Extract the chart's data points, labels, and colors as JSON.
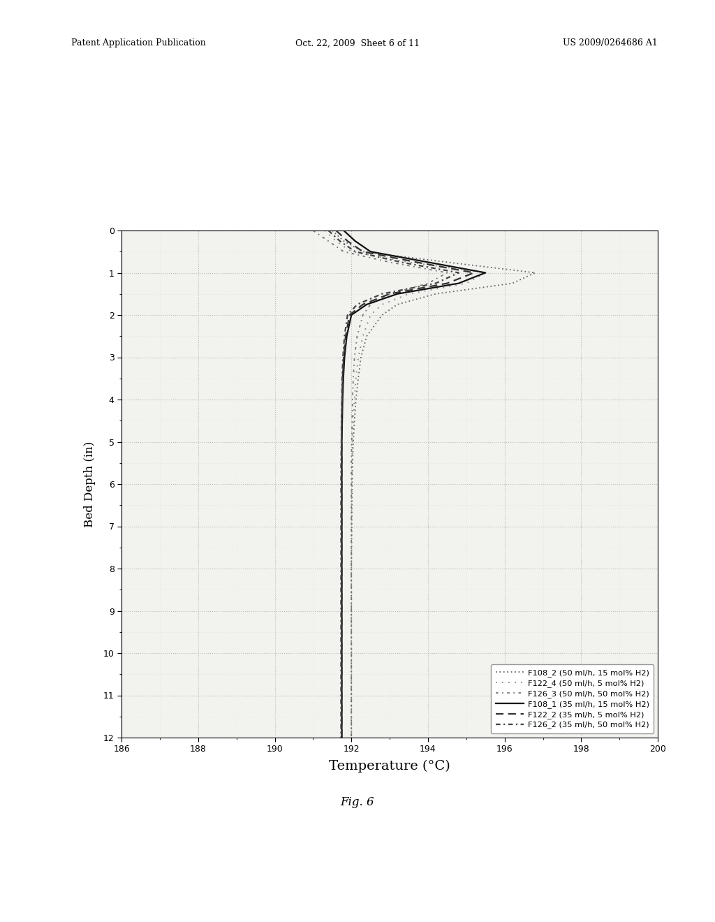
{
  "xlabel": "Temperature (°C)",
  "ylabel": "Bed Depth (in)",
  "xlim": [
    186,
    200
  ],
  "ylim": [
    12,
    0
  ],
  "xticks": [
    186,
    188,
    190,
    192,
    194,
    196,
    198,
    200
  ],
  "yticks": [
    0,
    1,
    2,
    3,
    4,
    5,
    6,
    7,
    8,
    9,
    10,
    11,
    12
  ],
  "header_left": "Patent Application Publication",
  "header_mid": "Oct. 22, 2009  Sheet 6 of 11",
  "header_right": "US 2009/0264686 A1",
  "fig_label": "Fig. 6",
  "series": [
    {
      "label": "F108_2 (50 ml/h, 15 mol% H2)",
      "linestyle": "dotted1",
      "color": "#666666",
      "linewidth": 1.3,
      "bed_depth": [
        0.0,
        0.25,
        0.5,
        0.75,
        1.0,
        1.25,
        1.5,
        1.75,
        2.0,
        2.5,
        3.0,
        3.5,
        4.0,
        4.5,
        5.0,
        5.5,
        6.0,
        7.0,
        8.0,
        9.0,
        10.0,
        11.0,
        12.0
      ],
      "temperature": [
        191.5,
        191.8,
        192.3,
        194.5,
        196.8,
        196.2,
        194.2,
        193.2,
        192.8,
        192.4,
        192.25,
        192.18,
        192.12,
        192.08,
        192.05,
        192.03,
        192.02,
        192.01,
        192.0,
        192.0,
        192.0,
        192.0,
        192.0
      ]
    },
    {
      "label": "F122_4 (50 ml/h, 5 mol% H2)",
      "linestyle": "dotted2",
      "color": "#888888",
      "linewidth": 1.3,
      "bed_depth": [
        0.0,
        0.25,
        0.5,
        0.75,
        1.0,
        1.25,
        1.5,
        1.75,
        2.0,
        2.5,
        3.0,
        3.5,
        4.0,
        4.5,
        5.0,
        5.5,
        6.0,
        7.0,
        8.0,
        9.0,
        10.0,
        11.0,
        12.0
      ],
      "temperature": [
        191.3,
        191.6,
        192.0,
        193.5,
        195.5,
        195.0,
        193.5,
        192.8,
        192.5,
        192.3,
        192.18,
        192.12,
        192.08,
        192.05,
        192.03,
        192.02,
        192.01,
        192.0,
        192.0,
        192.0,
        192.0,
        192.0,
        192.0
      ]
    },
    {
      "label": "F126_3 (50 ml/h, 50 mol% H2)",
      "linestyle": "dotted3",
      "color": "#777777",
      "linewidth": 1.3,
      "bed_depth": [
        0.0,
        0.25,
        0.5,
        0.75,
        1.0,
        1.25,
        1.5,
        1.75,
        2.0,
        2.5,
        3.0,
        3.5,
        4.0,
        4.5,
        5.0,
        5.5,
        6.0,
        7.0,
        8.0,
        9.0,
        10.0,
        11.0,
        12.0
      ],
      "temperature": [
        191.0,
        191.4,
        191.8,
        193.0,
        194.5,
        194.0,
        193.0,
        192.5,
        192.3,
        192.15,
        192.08,
        192.05,
        192.03,
        192.02,
        192.01,
        192.0,
        192.0,
        192.0,
        192.0,
        192.0,
        192.0,
        192.0,
        192.0
      ]
    },
    {
      "label": "F108_1 (35 ml/h, 15 mol% H2)",
      "linestyle": "solid",
      "color": "#111111",
      "linewidth": 1.6,
      "bed_depth": [
        0.0,
        0.25,
        0.5,
        0.75,
        1.0,
        1.25,
        1.5,
        1.75,
        2.0,
        2.5,
        3.0,
        3.5,
        4.0,
        4.5,
        5.0,
        5.5,
        6.0,
        7.0,
        8.0,
        9.0,
        10.0,
        11.0,
        12.0
      ],
      "temperature": [
        191.8,
        192.1,
        192.5,
        194.0,
        195.5,
        194.8,
        193.2,
        192.4,
        192.0,
        191.88,
        191.82,
        191.79,
        191.77,
        191.76,
        191.75,
        191.75,
        191.75,
        191.75,
        191.75,
        191.75,
        191.75,
        191.75,
        191.75
      ]
    },
    {
      "label": "F122_2 (35 ml/h, 5 mol% H2)",
      "linestyle": "dashed",
      "color": "#333333",
      "linewidth": 1.6,
      "bed_depth": [
        0.0,
        0.25,
        0.5,
        0.75,
        1.0,
        1.25,
        1.5,
        1.75,
        2.0,
        2.5,
        3.0,
        3.5,
        4.0,
        4.5,
        5.0,
        5.5,
        6.0,
        7.0,
        8.0,
        9.0,
        10.0,
        11.0,
        12.0
      ],
      "temperature": [
        191.6,
        191.9,
        192.3,
        193.7,
        195.2,
        194.5,
        193.0,
        192.3,
        191.95,
        191.85,
        191.8,
        191.77,
        191.76,
        191.75,
        191.75,
        191.75,
        191.75,
        191.75,
        191.75,
        191.75,
        191.75,
        191.75,
        191.75
      ]
    },
    {
      "label": "F126_2 (35 ml/h, 50 mol% H2)",
      "linestyle": "dotdash",
      "color": "#444444",
      "linewidth": 1.6,
      "bed_depth": [
        0.0,
        0.25,
        0.5,
        0.75,
        1.0,
        1.25,
        1.5,
        1.75,
        2.0,
        2.5,
        3.0,
        3.5,
        4.0,
        4.5,
        5.0,
        5.5,
        6.0,
        7.0,
        8.0,
        9.0,
        10.0,
        11.0,
        12.0
      ],
      "temperature": [
        191.4,
        191.7,
        192.1,
        193.3,
        194.8,
        194.2,
        192.8,
        192.15,
        191.9,
        191.82,
        191.78,
        191.76,
        191.75,
        191.74,
        191.74,
        191.73,
        191.73,
        191.73,
        191.73,
        191.73,
        191.73,
        191.73,
        191.73
      ]
    }
  ],
  "grid_color": "#bbbbbb",
  "minor_grid_color": "#dddddd",
  "bg_color": "#ffffff",
  "plot_bg_color": "#f2f2ee"
}
